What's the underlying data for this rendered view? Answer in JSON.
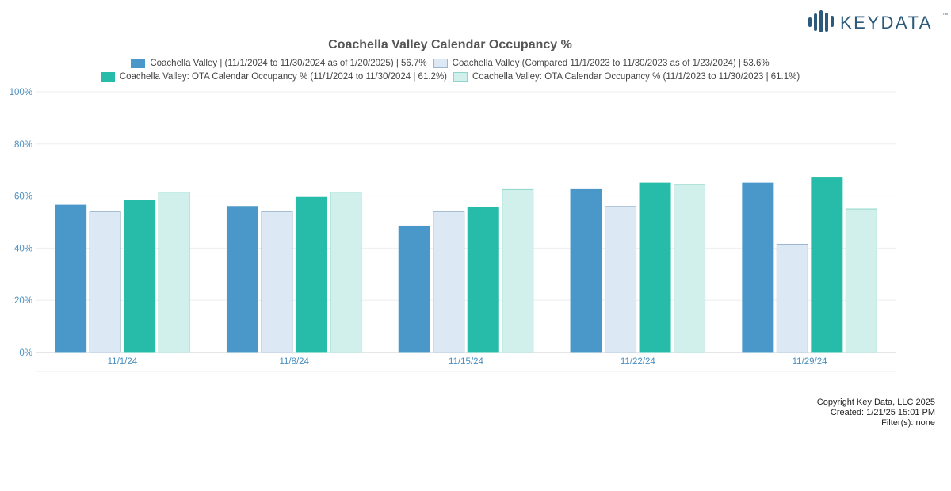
{
  "brand": {
    "name": "KEYDATA",
    "tm": "™",
    "color": "#2d5a7a"
  },
  "chart_data": {
    "type": "bar",
    "title": "Coachella Valley Calendar Occupancy %",
    "xlabel": "",
    "ylabel": "",
    "categories": [
      "11/1/24",
      "11/8/24",
      "11/15/24",
      "11/22/24",
      "11/29/24"
    ],
    "ylim": [
      0,
      100
    ],
    "yticks": [
      "0%",
      "20%",
      "40%",
      "60%",
      "80%",
      "100%"
    ],
    "y_tick_values": [
      0,
      20,
      40,
      60,
      80,
      100
    ],
    "grid": true,
    "legend_position": "top",
    "series": [
      {
        "name": "Coachella Valley | (11/1/2024 to 11/30/2024 as of 1/20/2025) | 56.7%",
        "color": "#4a97c9",
        "border": "#4a97c9",
        "values": [
          56.5,
          56,
          48.5,
          62.5,
          65
        ]
      },
      {
        "name": "Coachella Valley (Compared 11/1/2023 to 11/30/2023 as of 1/23/2024) | 53.6%",
        "color": "#dce8f3",
        "border": "#9bb6cf",
        "values": [
          54,
          54,
          54,
          56,
          41.5
        ]
      },
      {
        "name": "Coachella Valley: OTA Calendar Occupancy % (11/1/2024 to 11/30/2024 | 61.2%)",
        "color": "#26bca9",
        "border": "#26bca9",
        "values": [
          58.5,
          59.5,
          55.5,
          65,
          67
        ]
      },
      {
        "name": "Coachella Valley: OTA Calendar Occupancy % (11/1/2023 to 11/30/2023 | 61.1%)",
        "color": "#d1f0ec",
        "border": "#8fd5cb",
        "values": [
          61.5,
          61.5,
          62.5,
          64.5,
          55
        ]
      }
    ],
    "colors": {
      "grid": "#eeeeee",
      "y_tick_text": "#4a8fc0",
      "x_tick_text": "#4a8fc0",
      "axis": "#cccccc"
    }
  },
  "footer": {
    "copyright": "Copyright Key Data, LLC 2025",
    "created": "Created: 1/21/25 15:01 PM",
    "filters": "Filter(s): none"
  }
}
